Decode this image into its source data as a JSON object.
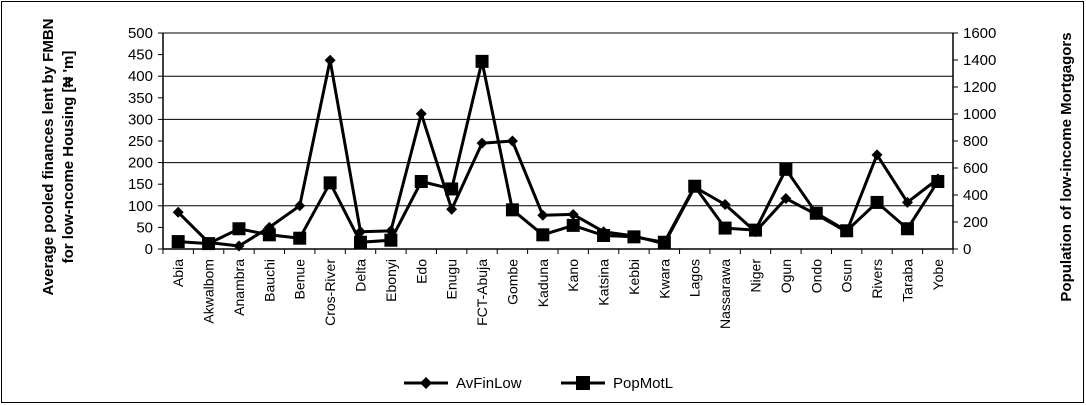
{
  "chart_data": {
    "type": "line",
    "categories": [
      "Abia",
      "Akwalbom",
      "Anambra",
      "Bauchi",
      "Benue",
      "Cros-River",
      "Delta",
      "Ebonyi",
      "Edo",
      "Enugu",
      "FCT-Abuja",
      "Gombe",
      "Kaduna",
      "Kano",
      "Katsina",
      "Kebbi",
      "Kwara",
      "Lagos",
      "Nassarawa",
      "Niger",
      "Ogun",
      "Ondo",
      "Osun",
      "Rivers",
      "Taraba",
      "Yobe"
    ],
    "ylabel": [
      "Average pooled finances lent by FMBN",
      "for low-ncome Housing [₦ 'm]"
    ],
    "y2label": "Population of low-income Mortgagors",
    "ylim": [
      0,
      500
    ],
    "y2lim": [
      0,
      1600
    ],
    "yticks": [
      0,
      50,
      100,
      150,
      200,
      250,
      300,
      350,
      400,
      450,
      500
    ],
    "y2ticks": [
      0,
      200,
      400,
      600,
      800,
      1000,
      1200,
      1400,
      1600
    ],
    "grid": "horizontal at 100-unit intervals",
    "legend_position": "bottom",
    "series": [
      {
        "name": "AvFinLow",
        "axis": "left",
        "marker": "diamond",
        "values": [
          85,
          15,
          7,
          50,
          100,
          437,
          40,
          42,
          313,
          92,
          245,
          250,
          78,
          80,
          40,
          30,
          12,
          143,
          103,
          40,
          117,
          80,
          40,
          218,
          108,
          162
        ]
      },
      {
        "name": "PopMotL",
        "axis": "right",
        "marker": "square",
        "values": [
          55,
          40,
          150,
          105,
          80,
          490,
          50,
          65,
          500,
          445,
          1390,
          290,
          105,
          175,
          100,
          90,
          50,
          465,
          155,
          140,
          590,
          265,
          135,
          345,
          150,
          500
        ]
      }
    ]
  }
}
